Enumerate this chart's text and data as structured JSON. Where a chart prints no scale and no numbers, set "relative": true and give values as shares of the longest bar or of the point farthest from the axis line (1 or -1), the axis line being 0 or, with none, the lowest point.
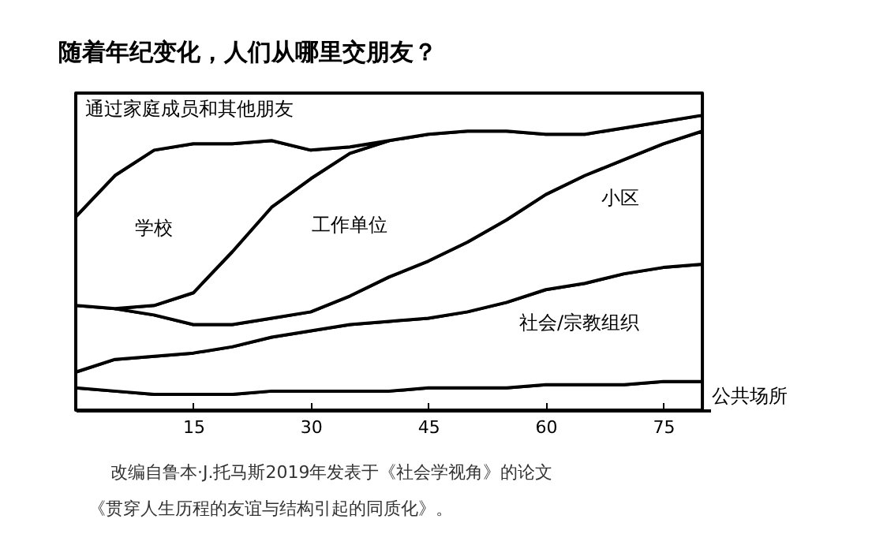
{
  "chart_data": {
    "type": "area",
    "title": "随着年纪变化，人们从哪里交朋友？",
    "stacked": true,
    "relative": true,
    "x": [
      0,
      5,
      10,
      15,
      20,
      25,
      30,
      35,
      40,
      45,
      50,
      55,
      60,
      65,
      70,
      75,
      80
    ],
    "xlim": [
      0,
      81
    ],
    "xticks": [
      15,
      30,
      45,
      60,
      75
    ],
    "grid": false,
    "legend": false,
    "series": [
      {
        "name": "公共场所",
        "color": "#ffffff",
        "values": [
          0.07,
          0.06,
          0.05,
          0.05,
          0.05,
          0.06,
          0.06,
          0.06,
          0.06,
          0.07,
          0.07,
          0.07,
          0.08,
          0.08,
          0.08,
          0.09,
          0.09
        ]
      },
      {
        "name": "社会/宗教组织",
        "color": "#ffffff",
        "values": [
          0.05,
          0.1,
          0.12,
          0.13,
          0.15,
          0.17,
          0.19,
          0.21,
          0.22,
          0.22,
          0.24,
          0.27,
          0.3,
          0.32,
          0.35,
          0.36,
          0.37
        ]
      },
      {
        "name": "小区",
        "color": "#ffffff",
        "values": [
          0.21,
          0.16,
          0.13,
          0.09,
          0.07,
          0.06,
          0.06,
          0.09,
          0.14,
          0.18,
          0.22,
          0.26,
          0.3,
          0.34,
          0.36,
          0.39,
          0.42
        ]
      },
      {
        "name": "工作单位",
        "color": "#ffffff",
        "values": [
          null,
          0,
          0.03,
          0.1,
          0.23,
          0.35,
          0.42,
          0.45,
          0.43,
          0.4,
          0.35,
          0.28,
          0.19,
          0.13,
          0.1,
          0.07,
          0.05
        ]
      },
      {
        "name": "学校",
        "color": "#ffffff",
        "values": [
          0.28,
          0.42,
          0.49,
          0.47,
          0.34,
          0.21,
          0.09,
          0.02,
          0,
          null,
          null,
          null,
          null,
          null,
          null,
          null,
          null
        ]
      },
      {
        "name": "通过家庭成员和其他朋友",
        "color": "#ffffff",
        "values": [
          0.39,
          0.26,
          0.18,
          0.16,
          0.16,
          0.15,
          0.18,
          0.17,
          0.15,
          0.13,
          0.12,
          0.12,
          0.13,
          0.13,
          0.11,
          0.09,
          0.07
        ]
      }
    ],
    "annotations": [
      "改编自鲁本·J.托马斯2019年发表于《社会学视角》的论文",
      "《贯穿人生历程的友谊与结构引起的同质化》。"
    ]
  }
}
